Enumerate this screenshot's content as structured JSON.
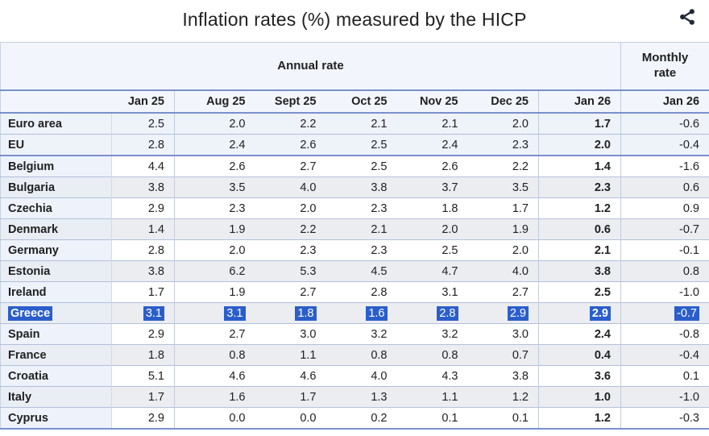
{
  "title": "Inflation rates (%) measured by the HICP",
  "icons": {
    "share": "share-icon"
  },
  "colors": {
    "text": "#202122",
    "accent-line": "#7a90cc",
    "sep-line": "#b3c0dc",
    "header-bg": "#f2f5fb",
    "agg-bg": "#eef2f9",
    "gray-bg": "#ebedf1",
    "label-bg": "#edf2fb",
    "sel-bg": "#2b5ecb",
    "share-icon": "#222838"
  },
  "chart_data": {
    "type": "table",
    "title": "Inflation rates (%) measured by the HICP",
    "group_headers": {
      "annual": "Annual rate",
      "monthly": "Monthly rate"
    },
    "annual_columns": [
      "Jan 25",
      "Aug 25",
      "Sept 25",
      "Oct 25",
      "Nov 25",
      "Dec 25",
      "Jan 26"
    ],
    "monthly_column": "Jan 26",
    "rows": [
      {
        "label": "Euro area",
        "values": [
          "2.5",
          "2.0",
          "2.2",
          "2.1",
          "2.1",
          "2.0",
          "1.7"
        ],
        "monthly": "-0.6"
      },
      {
        "label": "EU",
        "values": [
          "2.8",
          "2.4",
          "2.6",
          "2.5",
          "2.4",
          "2.3",
          "2.0"
        ],
        "monthly": "-0.4"
      },
      {
        "label": "Belgium",
        "values": [
          "4.4",
          "2.6",
          "2.7",
          "2.5",
          "2.6",
          "2.2",
          "1.4"
        ],
        "monthly": "-1.6"
      },
      {
        "label": "Bulgaria",
        "values": [
          "3.8",
          "3.5",
          "4.0",
          "3.8",
          "3.7",
          "3.5",
          "2.3"
        ],
        "monthly": "0.6"
      },
      {
        "label": "Czechia",
        "values": [
          "2.9",
          "2.3",
          "2.0",
          "2.3",
          "1.8",
          "1.7",
          "1.2"
        ],
        "monthly": "0.9"
      },
      {
        "label": "Denmark",
        "values": [
          "1.4",
          "1.9",
          "2.2",
          "2.1",
          "2.0",
          "1.9",
          "0.6"
        ],
        "monthly": "-0.7"
      },
      {
        "label": "Germany",
        "values": [
          "2.8",
          "2.0",
          "2.3",
          "2.3",
          "2.5",
          "2.0",
          "2.1"
        ],
        "monthly": "-0.1"
      },
      {
        "label": "Estonia",
        "values": [
          "3.8",
          "6.2",
          "5.3",
          "4.5",
          "4.7",
          "4.0",
          "3.8"
        ],
        "monthly": "0.8"
      },
      {
        "label": "Ireland",
        "values": [
          "1.7",
          "1.9",
          "2.7",
          "2.8",
          "3.1",
          "2.7",
          "2.5"
        ],
        "monthly": "-1.0"
      },
      {
        "label": "Greece",
        "values": [
          "3.1",
          "3.1",
          "1.8",
          "1.6",
          "2.8",
          "2.9",
          "2.9"
        ],
        "monthly": "-0.7",
        "selected": true
      },
      {
        "label": "Spain",
        "values": [
          "2.9",
          "2.7",
          "3.0",
          "3.2",
          "3.2",
          "3.0",
          "2.4"
        ],
        "monthly": "-0.8"
      },
      {
        "label": "France",
        "values": [
          "1.8",
          "0.8",
          "1.1",
          "0.8",
          "0.8",
          "0.7",
          "0.4"
        ],
        "monthly": "-0.4"
      },
      {
        "label": "Croatia",
        "values": [
          "5.1",
          "4.6",
          "4.6",
          "4.0",
          "4.3",
          "3.8",
          "3.6"
        ],
        "monthly": "0.1"
      },
      {
        "label": "Italy",
        "values": [
          "1.7",
          "1.6",
          "1.7",
          "1.3",
          "1.1",
          "1.2",
          "1.0"
        ],
        "monthly": "-1.0"
      },
      {
        "label": "Cyprus",
        "values": [
          "2.9",
          "0.0",
          "0.0",
          "0.2",
          "0.1",
          "0.1",
          "1.2"
        ],
        "monthly": "-0.3"
      }
    ],
    "aggregate_rows": [
      "Euro area",
      "EU"
    ],
    "selected_row": "Greece"
  }
}
